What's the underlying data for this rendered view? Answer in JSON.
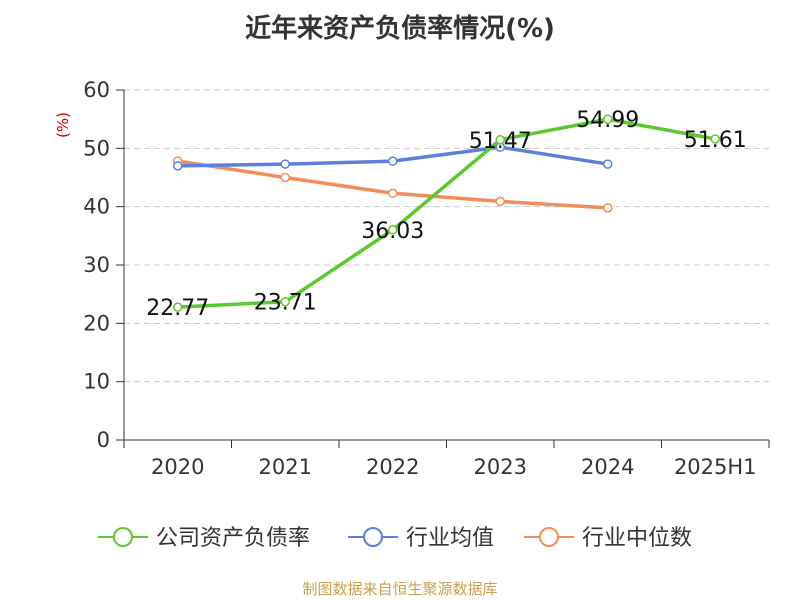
{
  "chart_data": {
    "type": "line",
    "title": "近年来资产负债率情况(%)",
    "ylabel": "(%)",
    "xlabel": "",
    "categories": [
      "2020",
      "2021",
      "2022",
      "2023",
      "2024",
      "2025H1"
    ],
    "ylim": [
      0,
      60
    ],
    "yticks": [
      0,
      10,
      20,
      30,
      40,
      50,
      60
    ],
    "grid": true,
    "legend_position": "bottom",
    "series": [
      {
        "name": "公司资产负债率",
        "color": "#5cc72e",
        "show_labels": true,
        "values": [
          22.77,
          23.71,
          36.03,
          51.47,
          54.99,
          51.61
        ]
      },
      {
        "name": "行业均值",
        "color": "#5b7fdb",
        "show_labels": false,
        "values": [
          47.0,
          47.3,
          47.8,
          50.2,
          47.3,
          null
        ]
      },
      {
        "name": "行业中位数",
        "color": "#f28c5a",
        "show_labels": false,
        "values": [
          47.8,
          45.0,
          42.3,
          40.9,
          39.8,
          null
        ]
      }
    ]
  },
  "footer": {
    "source": "制图数据来自恒生聚源数据库"
  }
}
